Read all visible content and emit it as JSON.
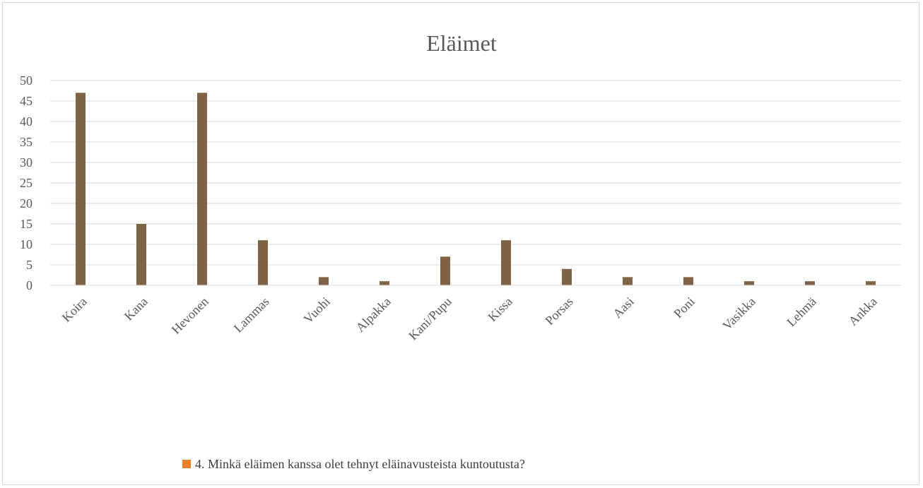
{
  "chart_data": {
    "type": "bar",
    "title": "Eläimet",
    "categories": [
      "Koira",
      "Kana",
      "Hevonen",
      "Lammas",
      "Vuohi",
      "Alpakka",
      "Kani/Pupu",
      "Kissa",
      "Porsas",
      "Aasi",
      "Poni",
      "Vasikka",
      "Lehmä",
      "Ankka"
    ],
    "series": [
      {
        "name": "4. Minkä eläimen kanssa olet tehnyt eläinavusteista kuntoutusta?",
        "values": [
          47,
          15,
          47,
          11,
          2,
          1,
          7,
          11,
          4,
          2,
          2,
          1,
          1,
          1
        ],
        "bar_color": "#7f6344"
      }
    ],
    "legend_marker_color": "#e8802a",
    "yticks": [
      0,
      5,
      10,
      15,
      20,
      25,
      30,
      35,
      40,
      45,
      50
    ],
    "ylim": [
      0,
      50
    ],
    "grid": true,
    "legend_position": "bottom",
    "xlabel": "",
    "ylabel": ""
  }
}
